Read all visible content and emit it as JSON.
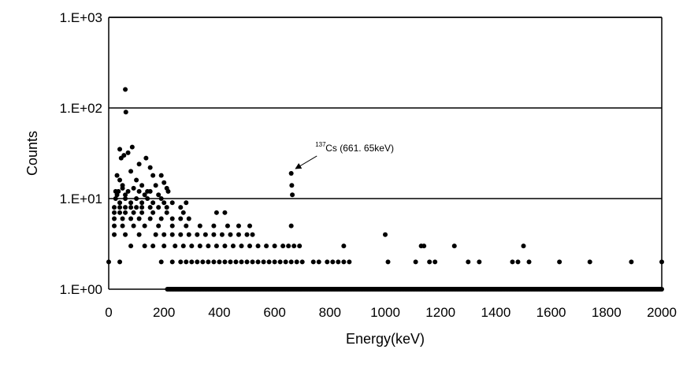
{
  "chart_data": {
    "type": "scatter",
    "title": "",
    "xlabel": "Energy(keV)",
    "ylabel": "Counts",
    "xlim": [
      0,
      2000
    ],
    "ylim": [
      1,
      1000
    ],
    "y_scale": "log",
    "x_ticks": [
      "0",
      "200",
      "400",
      "600",
      "800",
      "1000",
      "1200",
      "1400",
      "1600",
      "1800",
      "2000"
    ],
    "y_ticks": [
      "1.E+00",
      "1.E+01",
      "1.E+02",
      "1.E+03"
    ],
    "grid": "horizontal",
    "marker_color": "#000000",
    "annotation": {
      "isotope_mass": "137",
      "text": "Cs (661. 65keV)",
      "x": 661.65,
      "y": 19
    },
    "points": [
      [
        0,
        2
      ],
      [
        40,
        2
      ],
      [
        60,
        160
      ],
      [
        62,
        90
      ],
      [
        55,
        30
      ],
      [
        70,
        32
      ],
      [
        85,
        37
      ],
      [
        40,
        35
      ],
      [
        45,
        28
      ],
      [
        110,
        24
      ],
      [
        135,
        28
      ],
      [
        150,
        22
      ],
      [
        160,
        18
      ],
      [
        190,
        18
      ],
      [
        200,
        15
      ],
      [
        210,
        13
      ],
      [
        215,
        12
      ],
      [
        30,
        18
      ],
      [
        40,
        16
      ],
      [
        50,
        14
      ],
      [
        80,
        20
      ],
      [
        100,
        16
      ],
      [
        120,
        14
      ],
      [
        140,
        12
      ],
      [
        170,
        14
      ],
      [
        25,
        12
      ],
      [
        30,
        11
      ],
      [
        35,
        12
      ],
      [
        50,
        13
      ],
      [
        60,
        11
      ],
      [
        70,
        12
      ],
      [
        90,
        13
      ],
      [
        110,
        12
      ],
      [
        130,
        11
      ],
      [
        150,
        12
      ],
      [
        180,
        11
      ],
      [
        190,
        10
      ],
      [
        25,
        10
      ],
      [
        40,
        9
      ],
      [
        60,
        10
      ],
      [
        80,
        9
      ],
      [
        100,
        10
      ],
      [
        120,
        9
      ],
      [
        140,
        10
      ],
      [
        160,
        9
      ],
      [
        200,
        9
      ],
      [
        20,
        8
      ],
      [
        40,
        8
      ],
      [
        60,
        8
      ],
      [
        80,
        8
      ],
      [
        100,
        8
      ],
      [
        120,
        8
      ],
      [
        150,
        8
      ],
      [
        180,
        8
      ],
      [
        210,
        8
      ],
      [
        230,
        9
      ],
      [
        260,
        8
      ],
      [
        280,
        9
      ],
      [
        20,
        7
      ],
      [
        40,
        7
      ],
      [
        60,
        7
      ],
      [
        90,
        7
      ],
      [
        120,
        7
      ],
      [
        160,
        7
      ],
      [
        210,
        7
      ],
      [
        270,
        7
      ],
      [
        390,
        7
      ],
      [
        420,
        7
      ],
      [
        20,
        6
      ],
      [
        50,
        6
      ],
      [
        80,
        6
      ],
      [
        110,
        6
      ],
      [
        150,
        6
      ],
      [
        190,
        6
      ],
      [
        230,
        6
      ],
      [
        260,
        6
      ],
      [
        290,
        6
      ],
      [
        20,
        5
      ],
      [
        50,
        5
      ],
      [
        90,
        5
      ],
      [
        130,
        5
      ],
      [
        180,
        5
      ],
      [
        230,
        5
      ],
      [
        280,
        5
      ],
      [
        330,
        5
      ],
      [
        380,
        5
      ],
      [
        430,
        5
      ],
      [
        470,
        5
      ],
      [
        510,
        5
      ],
      [
        660,
        5
      ],
      [
        20,
        4
      ],
      [
        60,
        4
      ],
      [
        110,
        4
      ],
      [
        170,
        4
      ],
      [
        200,
        4
      ],
      [
        230,
        4
      ],
      [
        260,
        4
      ],
      [
        290,
        4
      ],
      [
        320,
        4
      ],
      [
        350,
        4
      ],
      [
        380,
        4
      ],
      [
        410,
        4
      ],
      [
        440,
        4
      ],
      [
        470,
        4
      ],
      [
        500,
        4
      ],
      [
        520,
        4
      ],
      [
        1000,
        4
      ],
      [
        80,
        3
      ],
      [
        130,
        3
      ],
      [
        160,
        3
      ],
      [
        200,
        3
      ],
      [
        240,
        3
      ],
      [
        270,
        3
      ],
      [
        300,
        3
      ],
      [
        330,
        3
      ],
      [
        360,
        3
      ],
      [
        390,
        3
      ],
      [
        420,
        3
      ],
      [
        450,
        3
      ],
      [
        480,
        3
      ],
      [
        510,
        3
      ],
      [
        540,
        3
      ],
      [
        570,
        3
      ],
      [
        600,
        3
      ],
      [
        630,
        3
      ],
      [
        650,
        3
      ],
      [
        670,
        3
      ],
      [
        690,
        3
      ],
      [
        850,
        3
      ],
      [
        1130,
        3
      ],
      [
        1140,
        3
      ],
      [
        1250,
        3
      ],
      [
        1500,
        3
      ],
      [
        190,
        2
      ],
      [
        230,
        2
      ],
      [
        260,
        2
      ],
      [
        280,
        2
      ],
      [
        300,
        2
      ],
      [
        320,
        2
      ],
      [
        340,
        2
      ],
      [
        360,
        2
      ],
      [
        380,
        2
      ],
      [
        400,
        2
      ],
      [
        420,
        2
      ],
      [
        440,
        2
      ],
      [
        460,
        2
      ],
      [
        480,
        2
      ],
      [
        500,
        2
      ],
      [
        520,
        2
      ],
      [
        540,
        2
      ],
      [
        560,
        2
      ],
      [
        580,
        2
      ],
      [
        600,
        2
      ],
      [
        620,
        2
      ],
      [
        640,
        2
      ],
      [
        660,
        2
      ],
      [
        680,
        2
      ],
      [
        700,
        2
      ],
      [
        740,
        2
      ],
      [
        760,
        2
      ],
      [
        790,
        2
      ],
      [
        810,
        2
      ],
      [
        830,
        2
      ],
      [
        850,
        2
      ],
      [
        870,
        2
      ],
      [
        1010,
        2
      ],
      [
        1110,
        2
      ],
      [
        1160,
        2
      ],
      [
        1180,
        2
      ],
      [
        1300,
        2
      ],
      [
        1340,
        2
      ],
      [
        1460,
        2
      ],
      [
        1480,
        2
      ],
      [
        1520,
        2
      ],
      [
        1630,
        2
      ],
      [
        1740,
        2
      ],
      [
        1890,
        2
      ],
      [
        2000,
        2
      ],
      [
        660,
        19
      ],
      [
        662,
        14
      ],
      [
        664,
        11
      ]
    ]
  }
}
